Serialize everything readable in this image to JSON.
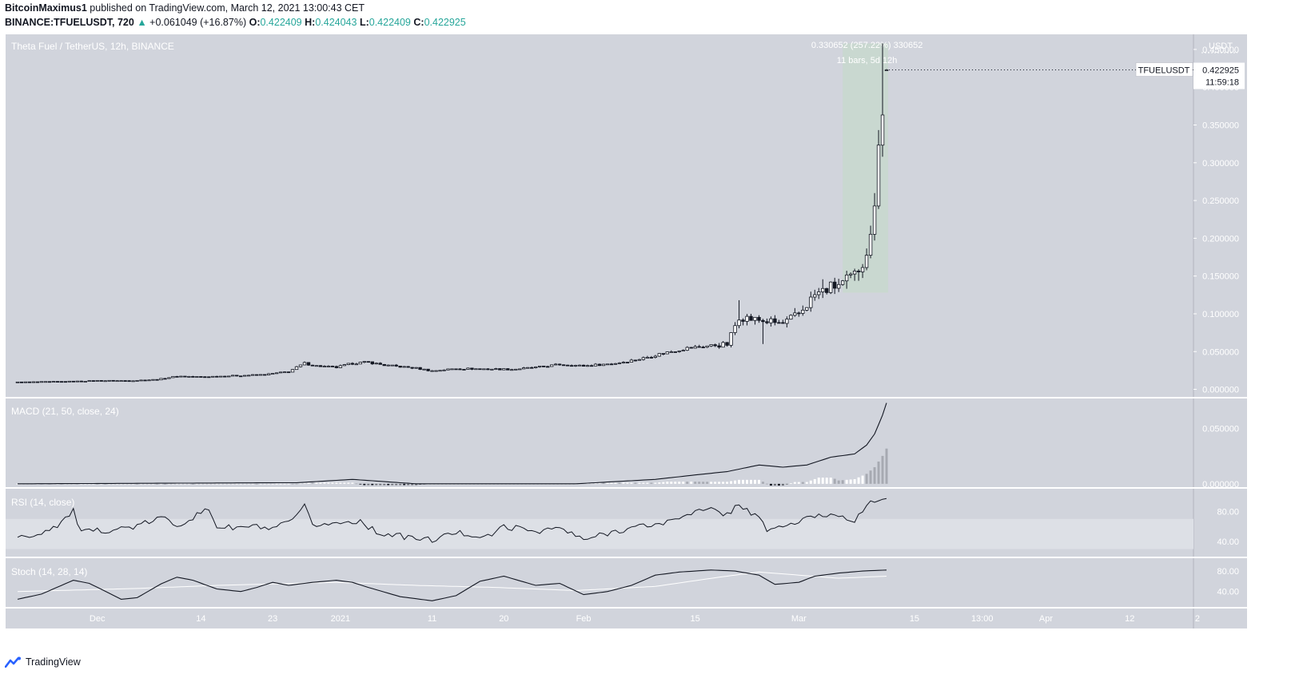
{
  "header": {
    "author": "BitcoinMaximus1",
    "published_text": "published on TradingView.com, March 12, 2021 13:00:43 CET",
    "symbol_line": "BINANCE:TFUELUSDT, 720",
    "change_arrow": "▲",
    "change": "+0.061049 (+16.87%)",
    "o_label": "O:",
    "o": "0.422409",
    "h_label": "H:",
    "h": "0.424043",
    "l_label": "L:",
    "l": "0.422409",
    "c_label": "C:",
    "c": "0.422925"
  },
  "brand": {
    "name": "TradingView"
  },
  "colors": {
    "pane_bg": "#d1d4dc",
    "outer_bg": "#ffffff",
    "measure_fill": "#c8d8cf",
    "up": "#26a69a",
    "line": "#131722",
    "rsi_band": "#dde0e6",
    "stoch_d": "#ffffff"
  },
  "chart_data": {
    "type": "candlestick",
    "title": "Theta Fuel / TetherUS, 12h, BINANCE",
    "currency": "USDT",
    "price_axis": {
      "ticks": [
        "0.450000",
        "0.400000",
        "0.350000",
        "0.300000",
        "0.250000",
        "0.200000",
        "0.150000",
        "0.100000",
        "0.050000",
        "0.000000"
      ],
      "tick_values": [
        0.45,
        0.4,
        0.35,
        0.3,
        0.25,
        0.2,
        0.15,
        0.1,
        0.05,
        0.0
      ],
      "range": [
        -0.01,
        0.47
      ]
    },
    "last_price": {
      "symbol": "TFUELUSDT",
      "value": "0.422925",
      "countdown": "11:59:18"
    },
    "measure": {
      "label_line1": "0.330652 (257.22%) 330652",
      "label_line2": "11 bars, 5d 12h",
      "from_price": 0.128,
      "to_price": 0.458,
      "from_index": 207,
      "to_index": 218
    },
    "x_axis": {
      "labels": [
        "Dec",
        "14",
        "23",
        "2021",
        "11",
        "20",
        "Feb",
        "15",
        "Mar",
        "15",
        "13:00",
        "Apr",
        "12",
        "2"
      ],
      "label_positions": [
        20,
        46,
        64,
        81,
        104,
        122,
        142,
        170,
        196,
        225,
        242,
        258,
        279,
        296
      ]
    },
    "index_range": [
      -3,
      295
    ],
    "keypoints": [
      [
        0,
        0.0095
      ],
      [
        14,
        0.0105
      ],
      [
        20,
        0.0115
      ],
      [
        28,
        0.0115
      ],
      [
        35,
        0.013
      ],
      [
        40,
        0.0175
      ],
      [
        46,
        0.0165
      ],
      [
        54,
        0.018
      ],
      [
        62,
        0.0195
      ],
      [
        68,
        0.0235
      ],
      [
        72,
        0.0345
      ],
      [
        75,
        0.031
      ],
      [
        80,
        0.029
      ],
      [
        84,
        0.0345
      ],
      [
        88,
        0.036
      ],
      [
        92,
        0.032
      ],
      [
        100,
        0.028
      ],
      [
        104,
        0.0245
      ],
      [
        110,
        0.0275
      ],
      [
        118,
        0.027
      ],
      [
        124,
        0.0265
      ],
      [
        130,
        0.029
      ],
      [
        136,
        0.033
      ],
      [
        142,
        0.031
      ],
      [
        150,
        0.0345
      ],
      [
        156,
        0.04
      ],
      [
        162,
        0.048
      ],
      [
        168,
        0.0545
      ],
      [
        174,
        0.058
      ],
      [
        178,
        0.0595
      ],
      [
        181,
        0.097
      ],
      [
        184,
        0.093
      ],
      [
        188,
        0.09
      ],
      [
        192,
        0.0865
      ],
      [
        196,
        0.1
      ],
      [
        200,
        0.125
      ],
      [
        204,
        0.135
      ],
      [
        207,
        0.14
      ],
      [
        210,
        0.151
      ],
      [
        212,
        0.17
      ],
      [
        214,
        0.199
      ],
      [
        215,
        0.255
      ],
      [
        216,
        0.336
      ],
      [
        217,
        0.364
      ],
      [
        218,
        0.4229
      ]
    ],
    "ohlc_last": {
      "open": 0.422409,
      "high": 0.424043,
      "low": 0.422409,
      "close": 0.422925
    },
    "macd": {
      "title": "MACD (21, 50, close, 24)",
      "ticks": [
        "0.050000",
        "0.000000"
      ],
      "tick_values": [
        0.05,
        0.0
      ],
      "range": [
        -0.003,
        0.077
      ],
      "keypoints": [
        [
          0,
          0.0
        ],
        [
          70,
          0.001
        ],
        [
          84,
          0.004
        ],
        [
          100,
          0.0
        ],
        [
          140,
          0.0
        ],
        [
          160,
          0.004
        ],
        [
          170,
          0.008
        ],
        [
          178,
          0.011
        ],
        [
          186,
          0.017
        ],
        [
          192,
          0.015
        ],
        [
          198,
          0.017
        ],
        [
          204,
          0.024
        ],
        [
          210,
          0.027
        ],
        [
          213,
          0.035
        ],
        [
          215,
          0.045
        ],
        [
          217,
          0.062
        ],
        [
          218,
          0.073
        ]
      ]
    },
    "rsi": {
      "title": "RSI (14, close)",
      "ticks": [
        "80.00",
        "40.00"
      ],
      "tick_values": [
        80,
        40
      ],
      "band": [
        30,
        70
      ],
      "range": [
        20,
        110
      ],
      "keypoints": [
        [
          0,
          44
        ],
        [
          5,
          50
        ],
        [
          10,
          62
        ],
        [
          14,
          80
        ],
        [
          16,
          52
        ],
        [
          22,
          55
        ],
        [
          30,
          60
        ],
        [
          36,
          72
        ],
        [
          40,
          62
        ],
        [
          44,
          72
        ],
        [
          48,
          83
        ],
        [
          50,
          60
        ],
        [
          54,
          58
        ],
        [
          60,
          60
        ],
        [
          64,
          55
        ],
        [
          70,
          72
        ],
        [
          72,
          86
        ],
        [
          74,
          62
        ],
        [
          80,
          64
        ],
        [
          86,
          68
        ],
        [
          90,
          52
        ],
        [
          100,
          44
        ],
        [
          104,
          42
        ],
        [
          110,
          52
        ],
        [
          118,
          46
        ],
        [
          122,
          60
        ],
        [
          130,
          54
        ],
        [
          136,
          58
        ],
        [
          142,
          42
        ],
        [
          150,
          54
        ],
        [
          156,
          60
        ],
        [
          162,
          64
        ],
        [
          166,
          72
        ],
        [
          168,
          78
        ],
        [
          174,
          82
        ],
        [
          178,
          76
        ],
        [
          181,
          90
        ],
        [
          186,
          70
        ],
        [
          188,
          56
        ],
        [
          192,
          60
        ],
        [
          196,
          66
        ],
        [
          200,
          74
        ],
        [
          206,
          76
        ],
        [
          210,
          68
        ],
        [
          212,
          80
        ],
        [
          214,
          90
        ],
        [
          217,
          96
        ],
        [
          218,
          97
        ]
      ]
    },
    "stoch": {
      "title": "Stoch (14, 28, 14)",
      "ticks": [
        "80.00",
        "40.00"
      ],
      "tick_values": [
        80,
        40
      ],
      "range": [
        10,
        105
      ],
      "k_keypoints": [
        [
          0,
          25
        ],
        [
          6,
          35
        ],
        [
          14,
          62
        ],
        [
          18,
          56
        ],
        [
          26,
          25
        ],
        [
          30,
          28
        ],
        [
          36,
          55
        ],
        [
          40,
          68
        ],
        [
          44,
          62
        ],
        [
          50,
          45
        ],
        [
          56,
          40
        ],
        [
          60,
          48
        ],
        [
          64,
          58
        ],
        [
          68,
          52
        ],
        [
          74,
          58
        ],
        [
          80,
          62
        ],
        [
          84,
          58
        ],
        [
          88,
          48
        ],
        [
          96,
          30
        ],
        [
          104,
          22
        ],
        [
          110,
          32
        ],
        [
          116,
          60
        ],
        [
          122,
          70
        ],
        [
          130,
          52
        ],
        [
          136,
          56
        ],
        [
          142,
          34
        ],
        [
          148,
          40
        ],
        [
          154,
          52
        ],
        [
          160,
          72
        ],
        [
          166,
          78
        ],
        [
          174,
          82
        ],
        [
          180,
          80
        ],
        [
          186,
          72
        ],
        [
          190,
          54
        ],
        [
          196,
          58
        ],
        [
          200,
          70
        ],
        [
          206,
          76
        ],
        [
          212,
          80
        ],
        [
          218,
          82
        ]
      ],
      "d_keypoints": [
        [
          0,
          40
        ],
        [
          30,
          46
        ],
        [
          50,
          52
        ],
        [
          80,
          58
        ],
        [
          100,
          52
        ],
        [
          120,
          48
        ],
        [
          140,
          42
        ],
        [
          160,
          50
        ],
        [
          176,
          68
        ],
        [
          186,
          78
        ],
        [
          196,
          72
        ],
        [
          206,
          66
        ],
        [
          218,
          70
        ]
      ]
    }
  }
}
